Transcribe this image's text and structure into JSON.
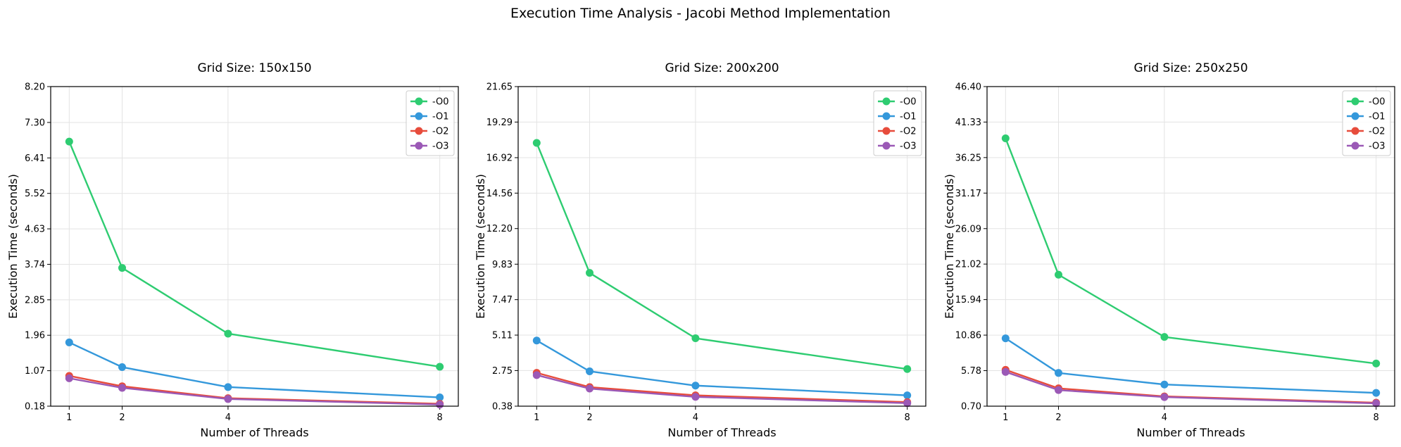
{
  "suptitle": "Execution Time Analysis - Jacobi Method Implementation",
  "colors": {
    "-O0": "#2ecc71",
    "-O1": "#3498db",
    "-O2": "#e74c3c",
    "-O3": "#9b59b6"
  },
  "chart_data": [
    {
      "type": "line",
      "title": "Grid Size: 150x150",
      "xlabel": "Number of Threads",
      "ylabel": "Execution Time (seconds)",
      "x": [
        1,
        2,
        4,
        8
      ],
      "xticks": [
        "1",
        "2",
        "4",
        "8"
      ],
      "xlim": [
        0.65,
        8.35
      ],
      "ylim": [
        0.18,
        8.2
      ],
      "yticks": [
        "0.18",
        "1.07",
        "1.96",
        "2.85",
        "3.74",
        "4.63",
        "5.52",
        "6.41",
        "7.30",
        "8.20"
      ],
      "grid": true,
      "legend": "top-right",
      "series": [
        {
          "name": "-O0",
          "values": [
            6.82,
            3.65,
            2.0,
            1.17
          ]
        },
        {
          "name": "-O1",
          "values": [
            1.78,
            1.16,
            0.66,
            0.4
          ]
        },
        {
          "name": "-O2",
          "values": [
            0.94,
            0.68,
            0.38,
            0.24
          ]
        },
        {
          "name": "-O3",
          "values": [
            0.88,
            0.64,
            0.36,
            0.22
          ]
        }
      ]
    },
    {
      "type": "line",
      "title": "Grid Size: 200x200",
      "xlabel": "Number of Threads",
      "ylabel": "Execution Time (seconds)",
      "x": [
        1,
        2,
        4,
        8
      ],
      "xticks": [
        "1",
        "2",
        "4",
        "8"
      ],
      "xlim": [
        0.65,
        8.35
      ],
      "ylim": [
        0.38,
        21.65
      ],
      "yticks": [
        "0.38",
        "2.75",
        "5.11",
        "7.47",
        "9.83",
        "12.20",
        "14.56",
        "16.92",
        "19.29",
        "21.65"
      ],
      "grid": true,
      "legend": "top-right",
      "series": [
        {
          "name": "-O0",
          "values": [
            17.9,
            9.25,
            4.9,
            2.85
          ]
        },
        {
          "name": "-O1",
          "values": [
            4.75,
            2.7,
            1.75,
            1.1
          ]
        },
        {
          "name": "-O2",
          "values": [
            2.6,
            1.65,
            1.1,
            0.65
          ]
        },
        {
          "name": "-O3",
          "values": [
            2.45,
            1.55,
            1.0,
            0.58
          ]
        }
      ]
    },
    {
      "type": "line",
      "title": "Grid Size: 250x250",
      "xlabel": "Number of Threads",
      "ylabel": "Execution Time (seconds)",
      "x": [
        1,
        2,
        4,
        8
      ],
      "xticks": [
        "1",
        "2",
        "4",
        "8"
      ],
      "xlim": [
        0.65,
        8.35
      ],
      "ylim": [
        0.7,
        46.4
      ],
      "yticks": [
        "0.70",
        "5.78",
        "10.86",
        "15.94",
        "21.02",
        "26.09",
        "31.17",
        "36.25",
        "41.33",
        "46.40"
      ],
      "grid": true,
      "legend": "top-right",
      "series": [
        {
          "name": "-O0",
          "values": [
            39.0,
            19.5,
            10.6,
            6.8
          ]
        },
        {
          "name": "-O1",
          "values": [
            10.4,
            5.45,
            3.8,
            2.6
          ]
        },
        {
          "name": "-O2",
          "values": [
            5.9,
            3.25,
            2.1,
            1.2
          ]
        },
        {
          "name": "-O3",
          "values": [
            5.6,
            3.0,
            2.0,
            1.1
          ]
        }
      ]
    }
  ]
}
